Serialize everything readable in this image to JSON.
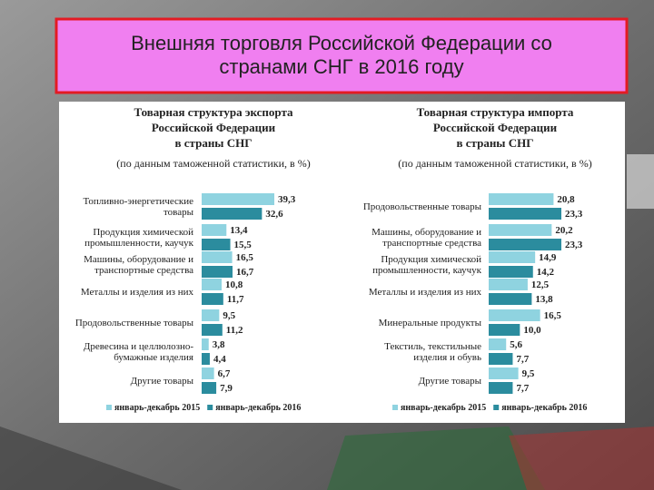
{
  "slide": {
    "title": "Внешняя торговля Российской Федерации со\nстранами СНГ в 2016 году"
  },
  "chart_data": [
    {
      "type": "hbar",
      "title": "Товарная структура экспорта\nРоссийской Федерации\nв страны СНГ",
      "subtitle": "(по данным таможенной статистики, в %)",
      "categories": [
        "Топливно-энергетические\nтовары",
        "Продукция химической\nпромышленности, каучук",
        "Машины, оборудование и\nтранспортные средства",
        "Металлы и изделия из них",
        "Продовольственные товары",
        "Древесина и целлюлозно-\nбумажные изделия",
        "Другие товары"
      ],
      "series": [
        {
          "name": "январь-декабрь 2015",
          "color": "#8fd3e0",
          "values": [
            39.3,
            13.4,
            16.5,
            10.8,
            9.5,
            3.8,
            6.7
          ],
          "value_labels": [
            "39,3",
            "13,4",
            "16,5",
            "10,8",
            "9,5",
            "3,8",
            "6,7"
          ]
        },
        {
          "name": "январь-декабрь 2016",
          "color": "#2b8c9e",
          "values": [
            32.6,
            15.5,
            16.7,
            11.7,
            11.2,
            4.4,
            7.9
          ],
          "value_labels": [
            "32,6",
            "15,5",
            "16,7",
            "11,7",
            "11,2",
            "4,4",
            "7,9"
          ]
        }
      ]
    },
    {
      "type": "hbar",
      "title": "Товарная структура импорта\nРоссийской Федерации\nв страны СНГ",
      "subtitle": "(по данным таможенной статистики, в %)",
      "categories": [
        "Продовольственные товары",
        "Машины, оборудование и\nтранспортные средства",
        "Продукция химической\nпромышленности, каучук",
        "Металлы и изделия из них",
        "Минеральные продукты",
        "Текстиль, текстильные\nизделия и обувь",
        "Другие товары"
      ],
      "series": [
        {
          "name": "январь-декабрь 2015",
          "color": "#8fd3e0",
          "values": [
            20.8,
            20.2,
            14.9,
            12.5,
            16.5,
            5.6,
            9.5
          ],
          "value_labels": [
            "20,8",
            "20,2",
            "14,9",
            "12,5",
            "16,5",
            "5,6",
            "9,5"
          ]
        },
        {
          "name": "январь-декабрь 2016",
          "color": "#2b8c9e",
          "values": [
            23.3,
            23.3,
            14.2,
            13.8,
            10.0,
            7.7,
            7.7
          ],
          "value_labels": [
            "23,3",
            "23,3",
            "14,2",
            "13,8",
            "10,0",
            "7,7",
            "7,7"
          ]
        }
      ]
    }
  ]
}
